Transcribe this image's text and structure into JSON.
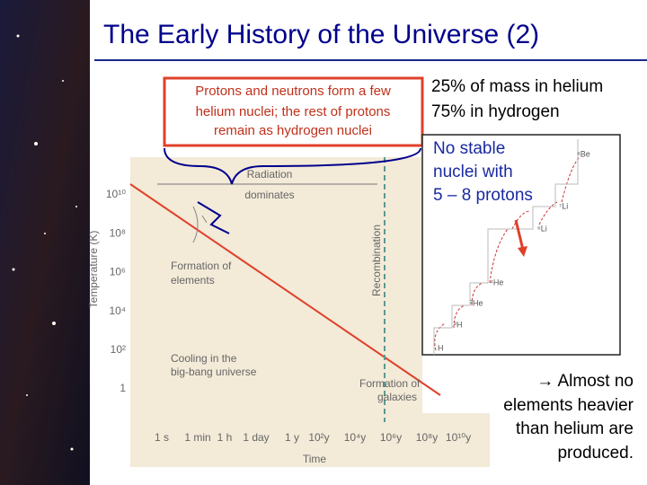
{
  "header": {
    "title": "The Early History of the Universe (2)"
  },
  "callout": {
    "lines": [
      "Protons and neutrons form a few",
      "helium nuclei; the rest of protons",
      "remain as hydrogen nuclei"
    ]
  },
  "result": {
    "lines": [
      "25% of mass in helium",
      "75% in hydrogen"
    ]
  },
  "figure": {
    "y_axis_label": "Temperature (K)",
    "y_ticks": [
      "10¹⁰",
      "10⁸",
      "10⁶",
      "10⁴",
      "10²",
      "1"
    ],
    "x_axis_label": "Time",
    "x_ticks": [
      "1 s",
      "1 min",
      "1 h",
      "1 day",
      "1 y",
      "10²y",
      "10⁴y",
      "10⁶y",
      "10⁸y",
      "10¹⁰y"
    ],
    "radiation": [
      "Radiation",
      "dominates"
    ],
    "recombination": "Recombination",
    "formation_elements": [
      "Formation of",
      "elements"
    ],
    "cooling": [
      "Cooling in the",
      "big-bang universe"
    ],
    "formation_galaxies": [
      "Formation of",
      "galaxies"
    ]
  },
  "inset": {
    "lines": [
      "No stable",
      "nuclei with",
      "5 – 8 protons"
    ],
    "isotopes": [
      "H",
      "²H",
      "³He",
      "⁴He",
      "⁶Li",
      "⁷Li",
      "⁸Be"
    ]
  },
  "conclusion": {
    "lines": [
      "→ Almost no",
      "elements heavier",
      "than helium are",
      "produced."
    ]
  }
}
